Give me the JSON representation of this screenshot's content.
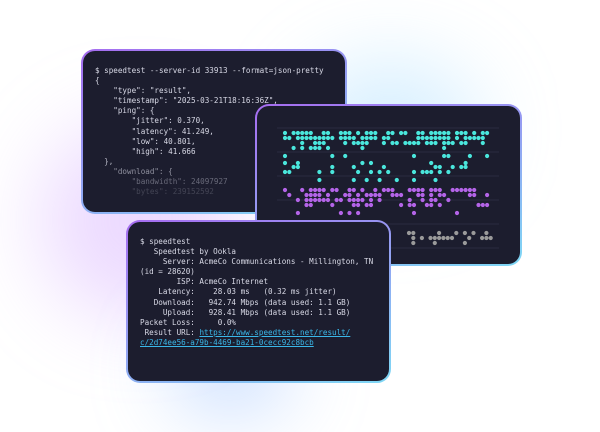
{
  "json_terminal": {
    "lines": [
      "$ speedtest --server-id 33913 --format=json-pretty",
      "{",
      "    \"type\": \"result\",",
      "    \"timestamp\": \"2025-03-21T18:16:36Z\",",
      "    \"ping\": {",
      "        \"jitter\": 0.370,",
      "        \"latency\": 41.249,",
      "        \"low\": 40.801,",
      "        \"high\": 41.666",
      "  },",
      "    \"download\": {",
      "        \"bandwidth\": 24097927",
      "        \"bytes\": 239152592"
    ]
  },
  "chart_window": {
    "colors": {
      "cyan": "#4ae6dc",
      "purple": "#b464e8",
      "grey": "#9a9a9a"
    }
  },
  "speedtest_terminal": {
    "lines": [
      "$ speedtest",
      "",
      "   Speedtest by Ookla",
      "",
      "     Server: AcmeCo Communications - Millington, TN",
      "(id = 28620)",
      "        ISP: AcmeCo Internet",
      "    Latency:    28.03 ms   (0.32 ms jitter)",
      "   Download:   942.74 Mbps (data used: 1.1 GB)",
      "     Upload:   928.41 Mbps (data used: 1.1 GB)",
      "Packet Loss:     0.0%"
    ],
    "result_label": " Result URL: ",
    "result_url_1": "https://www.speedtest.net/result/",
    "result_url_2": "c/2d74ee56-a79b-4469-ba21-0cecc92c8bcb"
  }
}
